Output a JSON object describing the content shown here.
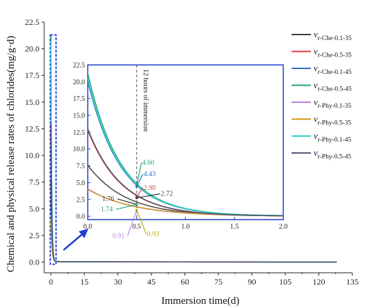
{
  "chart_data": {
    "type": "line",
    "title": "",
    "xlabel": "Immersion time(d)",
    "ylabel": "Chemical and physical release rates of chlorides(mg/g·d)",
    "xlim": [
      -3,
      135
    ],
    "ylim": [
      -1,
      22.5
    ],
    "xticks": [
      "0",
      "15",
      "30",
      "45",
      "60",
      "75",
      "90",
      "105",
      "120",
      "135"
    ],
    "yticks": [
      "0.0",
      "2.5",
      "5.0",
      "7.5",
      "10.0",
      "12.5",
      "15.0",
      "17.5",
      "20.0",
      "22.5"
    ],
    "legend_position": "right",
    "series": [
      {
        "name": "v",
        "sub": "r-Che-0.1-35",
        "color": "#3c3c3c",
        "y0": 7.6,
        "k": 2.6,
        "c": 0.15
      },
      {
        "name": "v",
        "sub": "r-Che-0.5-35",
        "color": "#e3373b",
        "y0": 12.8,
        "k": 2.9,
        "c": 0.2
      },
      {
        "name": "v",
        "sub": "r-Che-0.1-45",
        "color": "#2c6fc0",
        "y0": 20.1,
        "k": 3.0,
        "c": 0.3
      },
      {
        "name": "v",
        "sub": "r-Che-0.5-45",
        "color": "#23a46e",
        "y0": 21.3,
        "k": 3.0,
        "c": 0.3
      },
      {
        "name": "v",
        "sub": "r-Phy-0.1-35",
        "color": "#bf7fe6",
        "y0": 4.1,
        "k": 2.2,
        "c": 0.05
      },
      {
        "name": "v",
        "sub": "r-Phy-0.5-35",
        "color": "#d39a10",
        "y0": 4.0,
        "k": 2.1,
        "c": 0.05
      },
      {
        "name": "v",
        "sub": "r-Phy-0.1-45",
        "color": "#29d6cc",
        "y0": 20.6,
        "k": 3.0,
        "c": 0.3
      },
      {
        "name": "v",
        "sub": "r-Phy-0.5-45",
        "color": "#4a4a68",
        "y0": 13.0,
        "k": 2.9,
        "c": 0.2
      }
    ],
    "inset": {
      "xlim": [
        0,
        2.0
      ],
      "ylim": [
        -0.5,
        22.5
      ],
      "xticks": [
        "0.0",
        "0.5",
        "1.0",
        "1.5",
        "2.0"
      ],
      "yticks": [
        "0.0",
        "2.5",
        "5.0",
        "7.5",
        "10.0",
        "12.5",
        "15.0",
        "17.5",
        "20.0",
        "22.5"
      ],
      "marker_label": "12 hours of immersion",
      "marker_x": 0.5,
      "annotations": [
        {
          "text": "4.60",
          "color": "#23a46e",
          "x": 0.5,
          "y": 4.6
        },
        {
          "text": "4.43",
          "color": "#2c6fc0",
          "x": 0.5,
          "y": 4.43
        },
        {
          "text": "2.90",
          "color": "#c0504d",
          "x": 0.5,
          "y": 2.9
        },
        {
          "text": "2.72",
          "color": "#3c3c3c",
          "x": 0.5,
          "y": 2.72
        },
        {
          "text": "1.76",
          "color": "#3c3c3c",
          "x": 0.5,
          "y": 1.76
        },
        {
          "text": "1.74",
          "color": "#23a46e",
          "x": 0.5,
          "y": 1.74
        },
        {
          "text": "0.91",
          "color": "#bf7fe6",
          "x": 0.5,
          "y": 0.91
        },
        {
          "text": "0.93",
          "color": "#b8b000",
          "x": 0.5,
          "y": 0.93
        }
      ]
    }
  }
}
